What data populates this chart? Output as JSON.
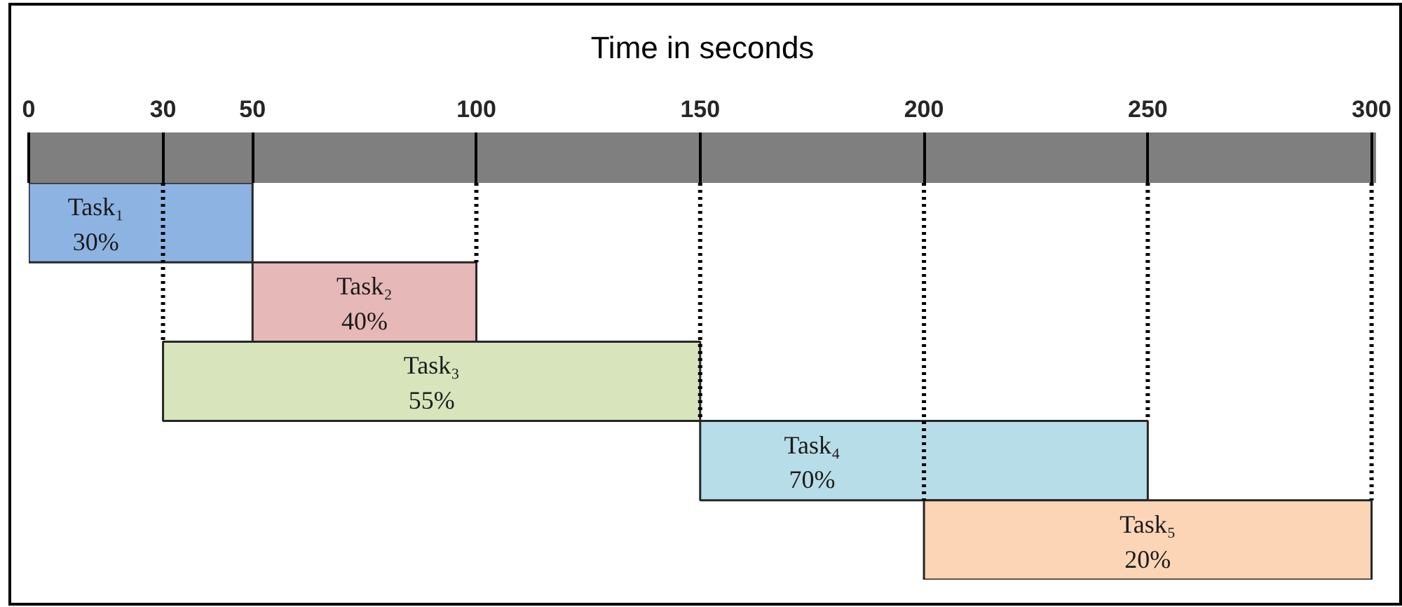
{
  "chart_data": {
    "type": "bar",
    "orientation": "horizontal",
    "xlabel": "Time in seconds",
    "categories": [
      "Task₁",
      "Task₂",
      "Task₃",
      "Task₄",
      "Task₅"
    ],
    "base": [
      0,
      50,
      30,
      150,
      200
    ],
    "values": [
      50,
      50,
      120,
      100,
      100
    ],
    "colors": [
      "#8db3e2",
      "#e6b8b7",
      "#d7e4bc",
      "#b7dde8",
      "#fbd5b5"
    ],
    "annotations": [
      "30%",
      "40%",
      "55%",
      "70%",
      "20%"
    ],
    "xlim": [
      0,
      301
    ],
    "xticks": [
      0,
      30,
      50,
      100,
      150,
      200,
      250,
      300
    ],
    "tick_labels": "x",
    "ref_lines": [
      {
        "axis": "x",
        "value": 30,
        "color": "#000000",
        "line_style": "dotted"
      },
      {
        "axis": "x",
        "value": 100,
        "color": "#000000",
        "line_style": "dotted"
      },
      {
        "axis": "x",
        "value": 150,
        "color": "#000000",
        "line_style": "dotted"
      },
      {
        "axis": "x",
        "value": 200,
        "color": "#000000",
        "line_style": "dotted"
      },
      {
        "axis": "x",
        "value": 250,
        "color": "#000000",
        "line_style": "dotted"
      },
      {
        "axis": "x",
        "value": 300,
        "color": "#000000",
        "line_style": "dotted"
      }
    ]
  }
}
